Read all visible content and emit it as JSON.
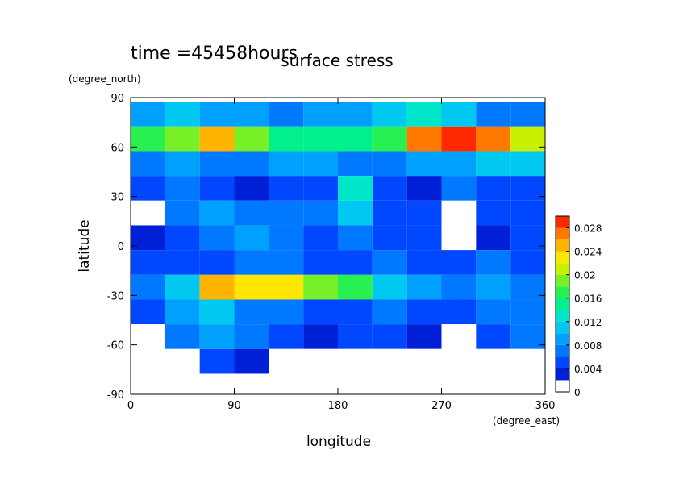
{
  "chart_data": {
    "type": "contour",
    "title": "surface stress",
    "subtitle": "time =45458hours",
    "x_label": "longitude",
    "x_unit": "(degree_east)",
    "y_label": "latitude",
    "y_unit": "(degree_north)",
    "x": [
      15,
      45,
      75,
      105,
      135,
      165,
      195,
      225,
      255,
      285,
      315,
      345
    ],
    "y": [
      80,
      65,
      50,
      35,
      20,
      5,
      -10,
      -25,
      -40,
      -55,
      -70
    ],
    "z": [
      [
        0.008,
        0.01,
        0.008,
        0.008,
        0.006,
        0.008,
        0.008,
        0.01,
        0.012,
        0.01,
        0.006,
        0.006
      ],
      [
        0.016,
        0.018,
        0.024,
        0.018,
        0.014,
        0.014,
        0.014,
        0.016,
        0.026,
        0.03,
        0.026,
        0.02
      ],
      [
        0.006,
        0.008,
        0.006,
        0.006,
        0.008,
        0.008,
        0.006,
        0.006,
        0.008,
        0.008,
        0.01,
        0.01
      ],
      [
        0.004,
        0.006,
        0.004,
        0.002,
        0.004,
        0.004,
        0.012,
        0.004,
        0.002,
        0.006,
        0.004,
        0.004
      ],
      [
        0.001,
        0.006,
        0.008,
        0.006,
        0.006,
        0.006,
        0.01,
        0.004,
        0.004,
        0.001,
        0.004,
        0.004
      ],
      [
        0.002,
        0.004,
        0.006,
        0.008,
        0.006,
        0.004,
        0.006,
        0.004,
        0.004,
        0.001,
        0.002,
        0.004
      ],
      [
        0.004,
        0.004,
        0.004,
        0.006,
        0.006,
        0.004,
        0.004,
        0.006,
        0.004,
        0.004,
        0.006,
        0.004
      ],
      [
        0.006,
        0.01,
        0.024,
        0.022,
        0.022,
        0.018,
        0.016,
        0.01,
        0.008,
        0.006,
        0.008,
        0.006
      ],
      [
        0.004,
        0.008,
        0.01,
        0.006,
        0.006,
        0.004,
        0.004,
        0.006,
        0.004,
        0.004,
        0.006,
        0.006
      ],
      [
        0.001,
        0.006,
        0.008,
        0.006,
        0.004,
        0.002,
        0.004,
        0.004,
        0.002,
        0.001,
        0.004,
        0.006
      ],
      [
        0,
        0,
        0.004,
        0.002,
        0,
        0,
        0,
        0,
        0,
        0,
        0,
        0
      ]
    ],
    "xlim": [
      0,
      360
    ],
    "xticks": [
      0,
      90,
      180,
      270,
      360
    ],
    "ylim": [
      -90,
      90
    ],
    "yticks": [
      -90,
      -60,
      -30,
      0,
      30,
      60,
      90
    ],
    "levels": [
      0,
      0.002,
      0.004,
      0.006,
      0.008,
      0.01,
      0.012,
      0.014,
      0.016,
      0.018,
      0.02,
      0.022,
      0.024,
      0.026,
      0.028,
      0.03
    ],
    "colors": [
      "#ffffff",
      "#0020d8",
      "#0048ff",
      "#0078ff",
      "#00a0ff",
      "#00c8f0",
      "#00e6c8",
      "#00f08c",
      "#28f050",
      "#78f028",
      "#c8f000",
      "#ffe600",
      "#ffb400",
      "#ff7800",
      "#ff2800"
    ],
    "colorbar_ticks": [
      0,
      0.004,
      0.008,
      0.012,
      0.016,
      0.02,
      0.024,
      0.028
    ]
  }
}
